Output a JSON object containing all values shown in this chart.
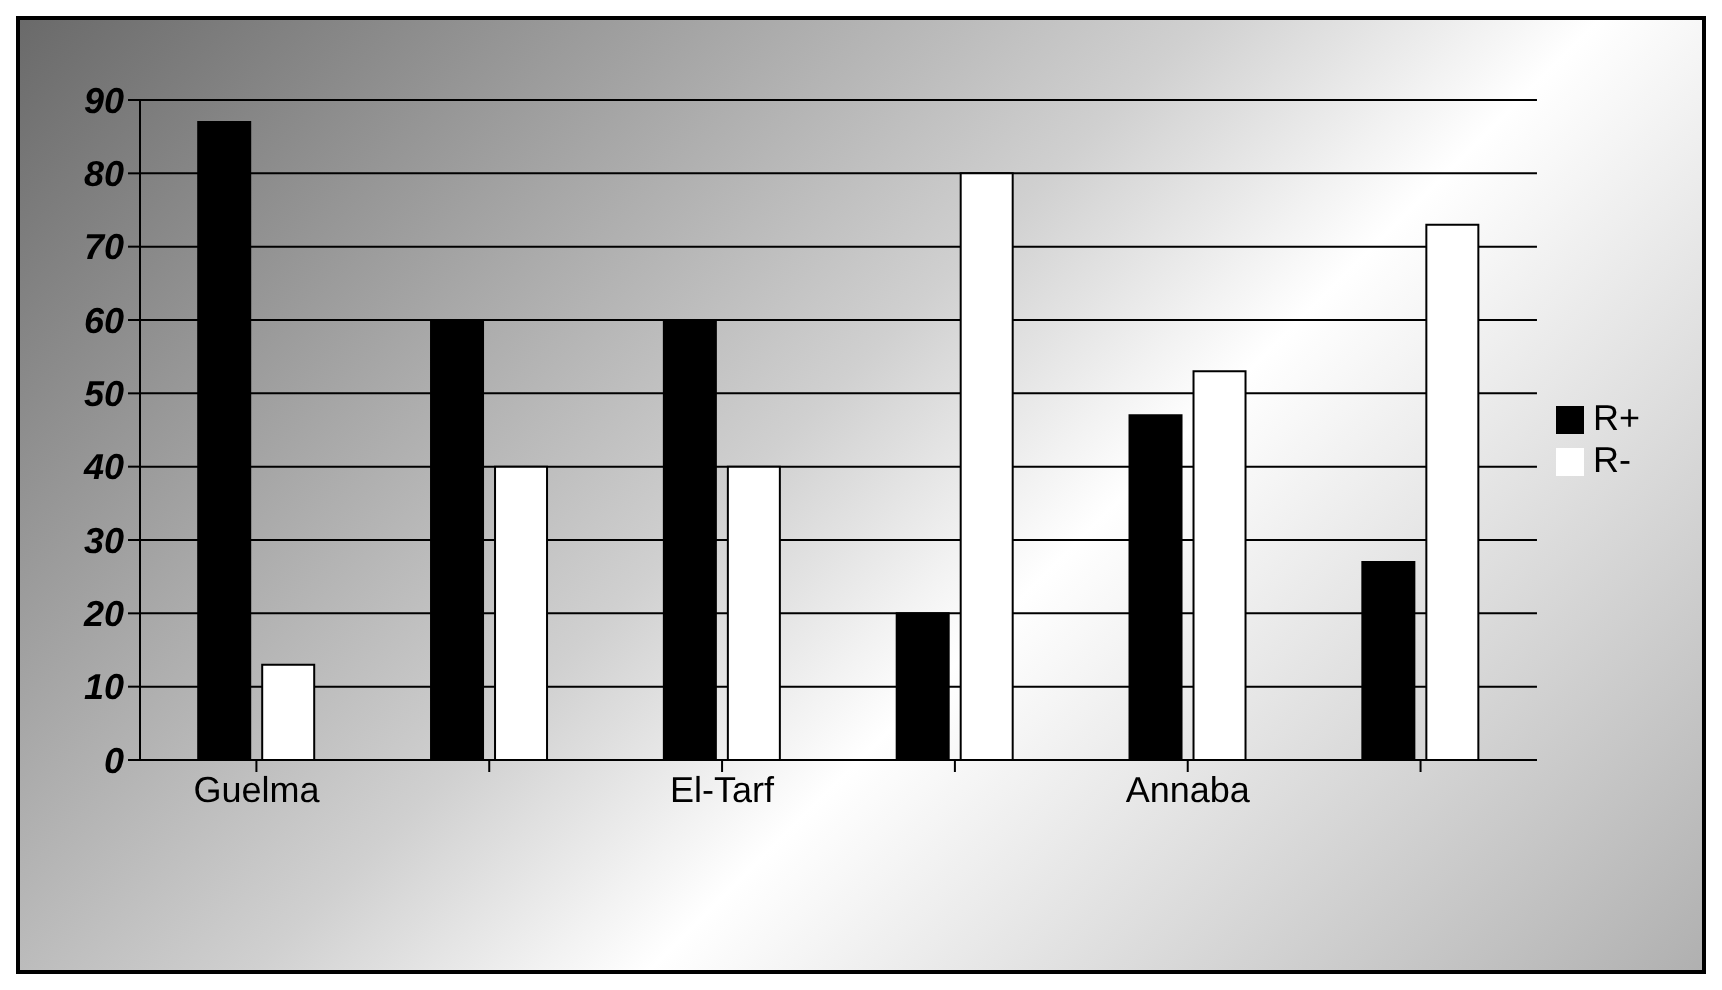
{
  "chart_data": {
    "type": "bar",
    "categories": [
      "Guelma",
      null,
      "El-Tarf",
      null,
      "Annaba",
      null
    ],
    "series": [
      {
        "name": "R+",
        "color": "#000000",
        "values": [
          87,
          60,
          60,
          20,
          47,
          27
        ]
      },
      {
        "name": "R-",
        "color": "#ffffff",
        "values": [
          13,
          40,
          40,
          80,
          53,
          73
        ]
      }
    ],
    "ylim": [
      0,
      90
    ],
    "yticks": [
      0,
      10,
      20,
      30,
      40,
      50,
      60,
      70,
      80,
      90
    ],
    "grid": "y",
    "legend": "right"
  }
}
